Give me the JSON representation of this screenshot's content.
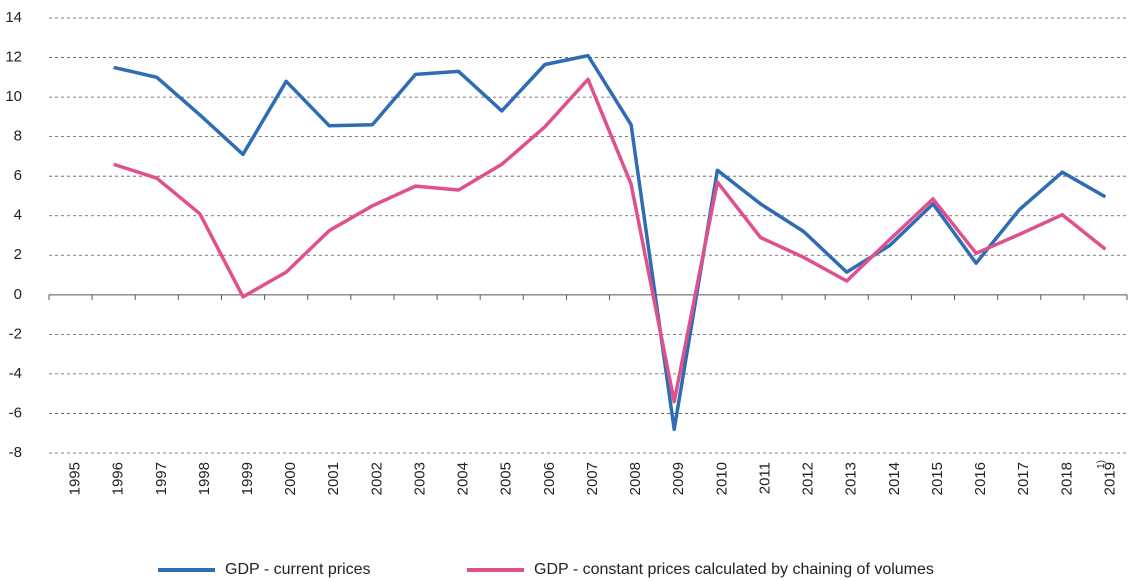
{
  "chart_data": {
    "type": "line",
    "categories": [
      "1995",
      "1996",
      "1997",
      "1998",
      "1999",
      "2000",
      "2001",
      "2002",
      "2003",
      "2004",
      "2005",
      "2006",
      "2007",
      "2008",
      "2009",
      "2010",
      "2011",
      "2012",
      "2013",
      "2014",
      "2015",
      "2016",
      "2017",
      "2018",
      "2019"
    ],
    "last_category_note": "1)",
    "series": [
      {
        "name": "GDP - current prices",
        "color": "#2e6db4",
        "values": [
          null,
          11.5,
          11.0,
          9.1,
          7.1,
          10.8,
          8.55,
          8.6,
          11.15,
          11.3,
          9.3,
          11.65,
          12.1,
          8.6,
          -6.8,
          6.3,
          4.6,
          3.2,
          1.15,
          2.5,
          4.6,
          1.6,
          4.3,
          6.2,
          4.95
        ]
      },
      {
        "name": "GDP - constant prices calculated by chaining of volumes",
        "color": "#e0508c",
        "values": [
          null,
          6.6,
          5.9,
          4.1,
          -0.1,
          1.15,
          3.25,
          4.5,
          5.5,
          5.3,
          6.6,
          8.5,
          10.9,
          5.6,
          -5.4,
          5.7,
          2.9,
          1.9,
          0.7,
          2.8,
          4.85,
          2.1,
          3.05,
          4.05,
          2.3
        ]
      }
    ],
    "ylim": [
      -8,
      14
    ],
    "yticks": [
      -8,
      -6,
      -4,
      -2,
      0,
      2,
      4,
      6,
      8,
      10,
      12,
      14
    ],
    "grid": true,
    "legend": "bottom"
  }
}
